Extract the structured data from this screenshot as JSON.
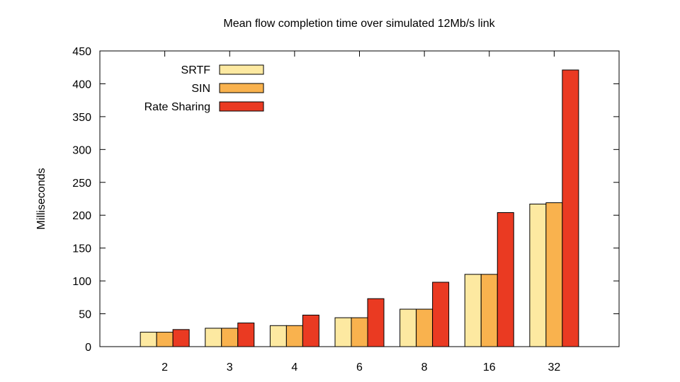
{
  "chart_data": {
    "type": "bar",
    "title": "Mean flow completion time over simulated 12Mb/s link",
    "xlabel": "",
    "ylabel": "Milliseconds",
    "ylim": [
      0,
      450
    ],
    "yticks": [
      0,
      50,
      100,
      150,
      200,
      250,
      300,
      350,
      400,
      450
    ],
    "categories": [
      "2",
      "3",
      "4",
      "6",
      "8",
      "16",
      "32"
    ],
    "series": [
      {
        "name": "SRTF",
        "color": "#fde9a1",
        "values": [
          22,
          28,
          32,
          44,
          57,
          110,
          217
        ]
      },
      {
        "name": "SIN",
        "color": "#f9b24e",
        "values": [
          22,
          28,
          32,
          44,
          57,
          110,
          219
        ]
      },
      {
        "name": "Rate Sharing",
        "color": "#ea3a22",
        "values": [
          26,
          36,
          48,
          73,
          98,
          204,
          421
        ]
      }
    ],
    "grid": false,
    "legend_position": "top-left"
  }
}
